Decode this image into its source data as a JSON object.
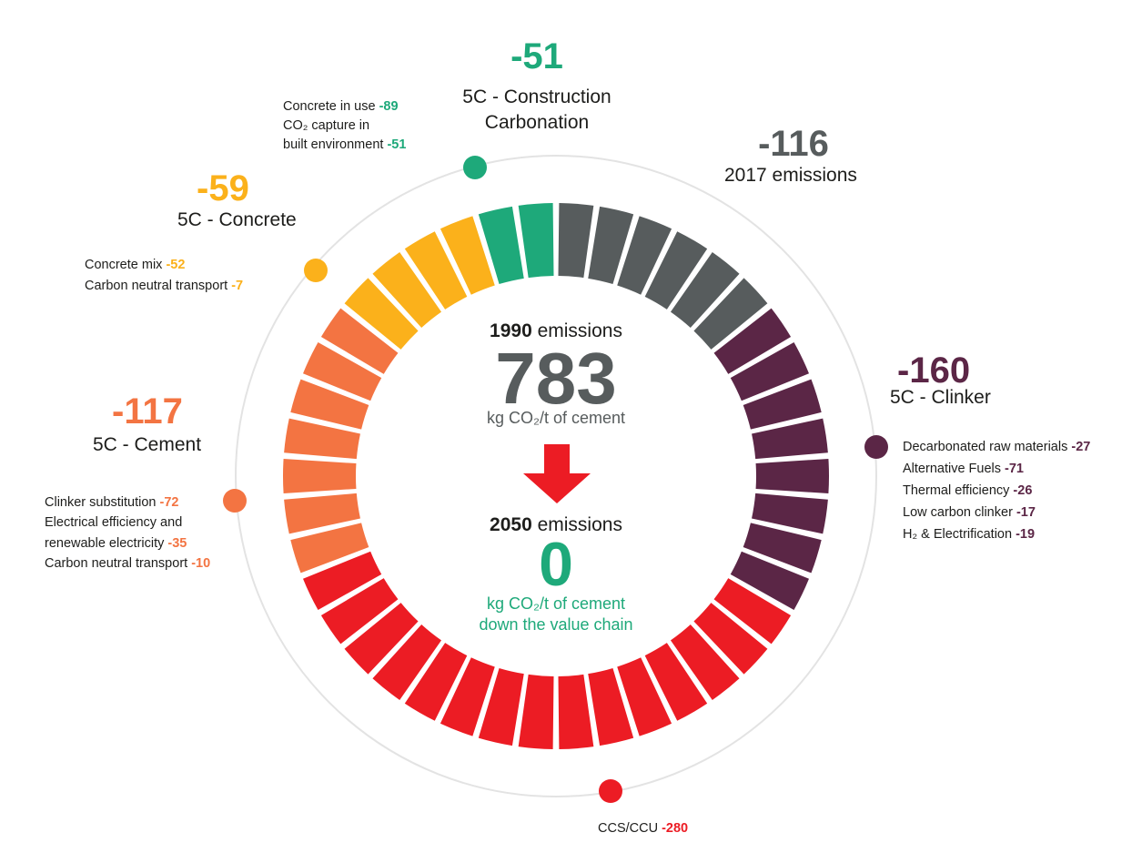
{
  "colors": {
    "grey": "#575c5d",
    "purple": "#5b2646",
    "red": "#ec1c24",
    "orange": "#f37442",
    "yellow": "#fbb11b",
    "green": "#1ea97a",
    "ring": "#e3e3e3"
  },
  "center": {
    "start_year": "1990",
    "start_word": "emissions",
    "start_value": "783",
    "unit_line": "kg CO₂/t of cement",
    "end_year": "2050",
    "end_word": "emissions",
    "end_value": "0",
    "end_unit_line1": "kg CO₂/t of cement",
    "end_unit_line2": "down the value chain",
    "arrow_icon": "down-arrow-icon"
  },
  "segments_per_group": [
    6,
    8,
    15,
    7,
    4,
    2
  ],
  "groups": {
    "emissions2017": {
      "value": "-116",
      "label": "2017 emissions"
    },
    "clinker": {
      "value": "-160",
      "label": "5C - Clinker",
      "items": [
        {
          "label": "Decarbonated raw materials",
          "value": "-27"
        },
        {
          "label": "Alternative Fuels",
          "value": "-71"
        },
        {
          "label": "Thermal efficiency",
          "value": "-26"
        },
        {
          "label": "Low carbon clinker",
          "value": "-17"
        },
        {
          "label": "H₂ & Electrification",
          "value": "-19"
        }
      ]
    },
    "ccs": {
      "label": "CCS/CCU",
      "value": "-280"
    },
    "cement": {
      "value": "-117",
      "label": "5C - Cement",
      "items": [
        {
          "label": "Clinker substitution",
          "value": "-72"
        },
        {
          "label": "Electrical efficiency and",
          "value": ""
        },
        {
          "label": "renewable electricity",
          "value": "-35"
        },
        {
          "label": "Carbon neutral transport",
          "value": "-10"
        }
      ]
    },
    "concrete": {
      "value": "-59",
      "label": "5C - Concrete",
      "items": [
        {
          "label": "Concrete mix",
          "value": "-52"
        },
        {
          "label": "Carbon neutral transport",
          "value": "-7"
        }
      ]
    },
    "construction": {
      "value": "-51",
      "label_line1": "5C - Construction",
      "label_line2": "Carbonation",
      "items": [
        {
          "label": "Concrete in use",
          "value": "-89"
        },
        {
          "label": "CO₂ capture in",
          "value": ""
        },
        {
          "label": "built environment",
          "value": "-51"
        }
      ]
    }
  }
}
